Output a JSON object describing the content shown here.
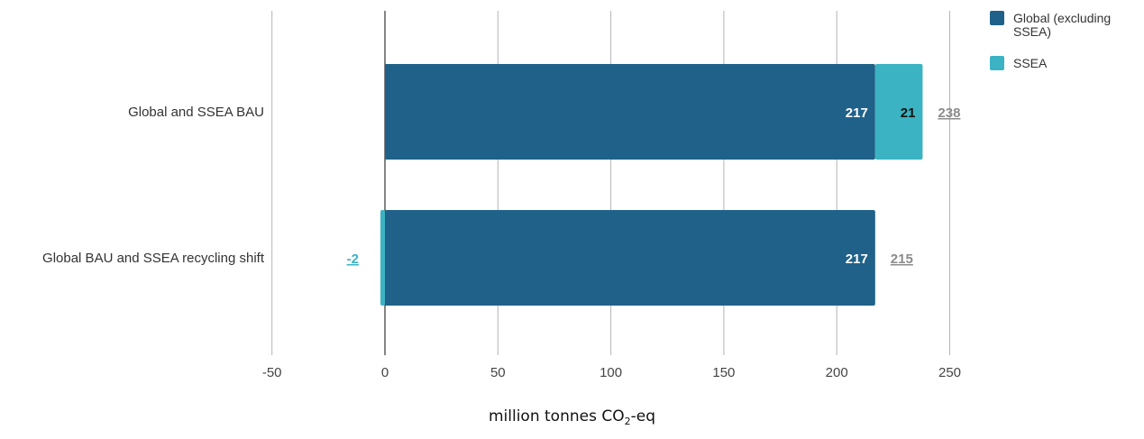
{
  "chart_data": {
    "type": "bar",
    "orientation": "horizontal",
    "stacked": true,
    "categories": [
      "Global and SSEA BAU",
      "Global BAU and SSEA recycling shift"
    ],
    "series": [
      {
        "name": "Global (excluding SSEA)",
        "values": [
          217,
          217
        ],
        "color": "#1f6189"
      },
      {
        "name": "SSEA",
        "values": [
          21,
          -2
        ],
        "color": "#3bb3c3"
      }
    ],
    "totals": [
      238,
      215
    ],
    "xlabel_main": "million tonnes CO",
    "xlabel_sub": "2",
    "xlabel_tail": "-eq",
    "xlim": [
      -50,
      250
    ],
    "xticks": [
      -50,
      0,
      50,
      100,
      150,
      200,
      250
    ],
    "xtick_labels": [
      "-50",
      "0",
      "50",
      "100",
      "150",
      "200",
      "250"
    ],
    "grid": true,
    "legend_position": "top-right"
  }
}
